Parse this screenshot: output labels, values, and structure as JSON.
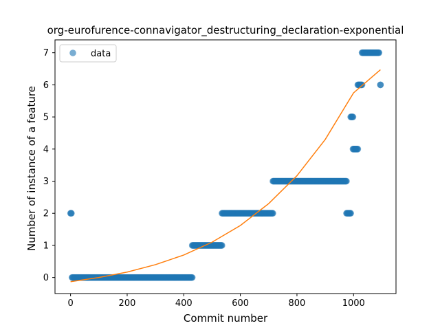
{
  "chart_data": {
    "type": "scatter",
    "title": "org-eurofurence-connavigator_destructuring_declaration-exponential",
    "xlabel": "Commit number",
    "ylabel": "Number of instance of a feature",
    "xlim": [
      -55,
      1150
    ],
    "ylim": [
      -0.5,
      7.4
    ],
    "xticks": [
      0,
      200,
      400,
      600,
      800,
      1000
    ],
    "yticks": [
      0,
      1,
      2,
      3,
      4,
      5,
      6,
      7
    ],
    "grid": false,
    "legend": {
      "position": "top-left",
      "entries": [
        "data"
      ]
    },
    "series": [
      {
        "name": "data",
        "kind": "points",
        "color": "#1f77b4",
        "segments": [
          {
            "x_start": 0,
            "x_end": 3,
            "y": 2
          },
          {
            "x_start": 5,
            "x_end": 430,
            "y": 0
          },
          {
            "x_start": 430,
            "x_end": 535,
            "y": 1
          },
          {
            "x_start": 535,
            "x_end": 715,
            "y": 2
          },
          {
            "x_start": 715,
            "x_end": 975,
            "y": 3
          },
          {
            "x_start": 975,
            "x_end": 990,
            "y": 2
          },
          {
            "x_start": 990,
            "x_end": 998,
            "y": 5
          },
          {
            "x_start": 998,
            "x_end": 1015,
            "y": 4
          },
          {
            "x_start": 1015,
            "x_end": 1030,
            "y": 6
          },
          {
            "x_start": 1030,
            "x_end": 1090,
            "y": 7
          },
          {
            "x_start": 1095,
            "x_end": 1095,
            "y": 6
          }
        ]
      },
      {
        "name": "fit",
        "kind": "line",
        "color": "#ff7f0e",
        "x": [
          0,
          100,
          200,
          300,
          400,
          500,
          600,
          700,
          800,
          900,
          1000,
          1095
        ],
        "y": [
          -0.13,
          0.0,
          0.17,
          0.4,
          0.7,
          1.1,
          1.62,
          2.3,
          3.17,
          4.3,
          5.75,
          6.47
        ]
      }
    ]
  }
}
